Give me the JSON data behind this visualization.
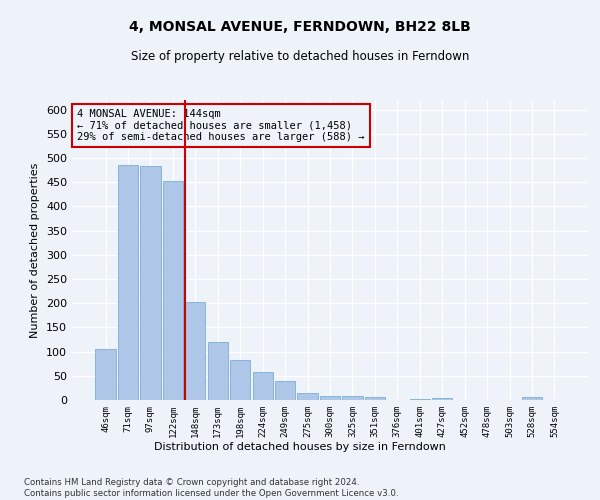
{
  "title": "4, MONSAL AVENUE, FERNDOWN, BH22 8LB",
  "subtitle": "Size of property relative to detached houses in Ferndown",
  "xlabel_bottom": "Distribution of detached houses by size in Ferndown",
  "ylabel": "Number of detached properties",
  "bar_color": "#aec6e8",
  "bar_edge_color": "#7aafd4",
  "vline_color": "#cc0000",
  "annotation_text": "4 MONSAL AVENUE: 144sqm\n← 71% of detached houses are smaller (1,458)\n29% of semi-detached houses are larger (588) →",
  "categories": [
    "46sqm",
    "71sqm",
    "97sqm",
    "122sqm",
    "148sqm",
    "173sqm",
    "198sqm",
    "224sqm",
    "249sqm",
    "275sqm",
    "300sqm",
    "325sqm",
    "351sqm",
    "376sqm",
    "401sqm",
    "427sqm",
    "452sqm",
    "478sqm",
    "503sqm",
    "528sqm",
    "554sqm"
  ],
  "values": [
    105,
    485,
    483,
    453,
    202,
    120,
    82,
    57,
    40,
    14,
    9,
    9,
    6,
    0,
    3,
    5,
    0,
    0,
    0,
    6,
    0
  ],
  "ylim": [
    0,
    620
  ],
  "yticks": [
    0,
    50,
    100,
    150,
    200,
    250,
    300,
    350,
    400,
    450,
    500,
    550,
    600
  ],
  "footer": "Contains HM Land Registry data © Crown copyright and database right 2024.\nContains public sector information licensed under the Open Government Licence v3.0.",
  "bg_color": "#eef2f9",
  "grid_color": "#ffffff"
}
